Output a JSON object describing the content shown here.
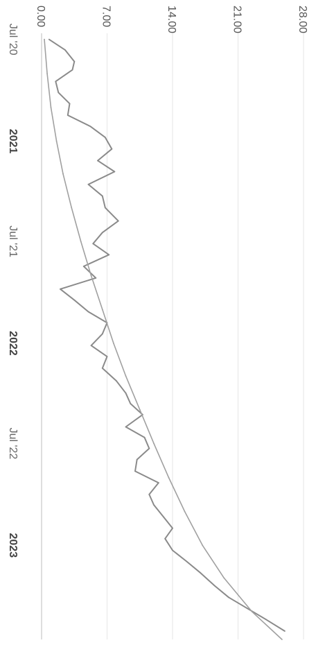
{
  "chart_data": {
    "type": "line",
    "title": "",
    "xlabel": "",
    "ylabel": "",
    "ylim": [
      0,
      28
    ],
    "grid": true,
    "legend": "none",
    "y_ticks": [
      "0.00",
      "7.00",
      "14.00",
      "21.00",
      "28.00"
    ],
    "x_ticks": [
      {
        "label": "Jul '20",
        "date": "2020-07-01",
        "major": false
      },
      {
        "label": "2021",
        "date": "2021-01-01",
        "major": true
      },
      {
        "label": "Jul '21",
        "date": "2021-07-01",
        "major": false
      },
      {
        "label": "2022",
        "date": "2022-01-01",
        "major": true
      },
      {
        "label": "Jul '22",
        "date": "2022-07-01",
        "major": false
      },
      {
        "label": "2023",
        "date": "2023-01-01",
        "major": true
      }
    ],
    "series": [
      {
        "color": "#8a8a8a",
        "x": [
          "2020-07-01",
          "2020-07-20",
          "2020-08-10",
          "2020-08-25",
          "2020-09-15",
          "2020-10-05",
          "2020-10-25",
          "2020-11-15",
          "2020-12-05",
          "2020-12-25",
          "2021-01-15",
          "2021-02-05",
          "2021-02-25",
          "2021-03-20",
          "2021-04-10",
          "2021-05-01",
          "2021-05-25",
          "2021-06-15",
          "2021-07-05",
          "2021-07-25",
          "2021-08-15",
          "2021-09-05",
          "2021-09-25",
          "2021-10-15",
          "2021-11-05",
          "2021-11-25",
          "2021-12-15",
          "2022-01-05",
          "2022-01-25",
          "2022-02-15",
          "2022-03-10",
          "2022-04-01",
          "2022-04-20",
          "2022-05-10",
          "2022-06-01",
          "2022-06-20",
          "2022-07-10",
          "2022-07-30",
          "2022-08-20",
          "2022-09-10",
          "2022-10-01",
          "2022-10-20",
          "2022-11-10",
          "2022-12-01",
          "2022-12-20",
          "2023-01-10",
          "2023-01-30",
          "2023-02-20",
          "2023-03-15",
          "2023-04-05",
          "2023-04-25",
          "2023-05-15",
          "2023-06-05"
        ],
        "values": [
          0.8,
          2.5,
          3.5,
          3.3,
          1.5,
          1.8,
          3.0,
          2.8,
          5.2,
          6.8,
          7.5,
          6.0,
          7.8,
          5.0,
          6.5,
          6.8,
          8.2,
          6.5,
          5.5,
          7.2,
          4.5,
          5.8,
          2.0,
          3.5,
          5.0,
          7.0,
          6.5,
          5.3,
          7.0,
          6.5,
          8.0,
          9.0,
          9.5,
          10.8,
          9.0,
          11.0,
          11.5,
          10.2,
          10.0,
          12.5,
          11.5,
          12.0,
          13.0,
          14.0,
          13.2,
          14.0,
          15.5,
          17.0,
          18.5,
          20.0,
          22.0,
          24.0,
          26.0
        ]
      },
      {
        "color": "#a0a0a0",
        "x": [
          "2020-07-01",
          "2020-09-01",
          "2020-11-01",
          "2021-01-01",
          "2021-03-01",
          "2021-05-01",
          "2021-07-01",
          "2021-09-01",
          "2021-11-01",
          "2022-01-01",
          "2022-03-01",
          "2022-05-01",
          "2022-07-01",
          "2022-09-01",
          "2022-11-01",
          "2023-01-01",
          "2023-03-01",
          "2023-05-01",
          "2023-06-20"
        ],
        "values": [
          0.3,
          0.6,
          1.0,
          1.6,
          2.3,
          3.2,
          4.2,
          5.3,
          6.5,
          7.7,
          9.0,
          10.5,
          12.0,
          13.6,
          15.3,
          17.2,
          19.5,
          22.5,
          25.7
        ]
      }
    ]
  }
}
